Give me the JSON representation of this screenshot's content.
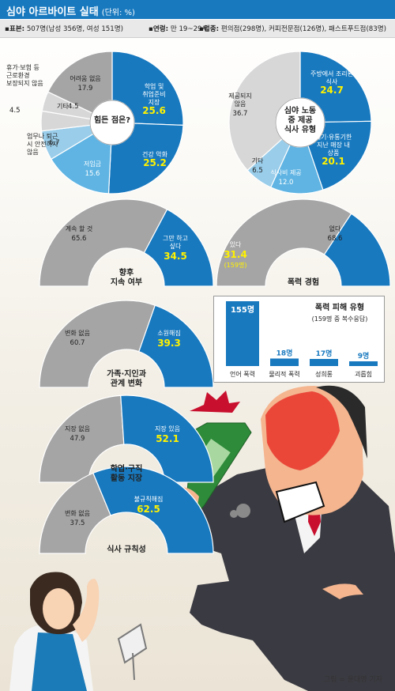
{
  "header": {
    "title": "심야 아르바이트 실태",
    "unit": "(단위: %)"
  },
  "info": {
    "sample_label": "표본:",
    "sample_value": "507명(남성 356명, 여성 151명)",
    "age_label": "연령:",
    "age_value": "만 19~29세",
    "job_label": "업종:",
    "job_value": "편의점(298명), 커피전문점(126명), 패스트푸드점(83명)"
  },
  "colors": {
    "blue": "#1879bf",
    "light_blue": "#5fb4e3",
    "pale_blue": "#99cdea",
    "gray": "#a5a5a5",
    "light_gray": "#d7d7d7",
    "yellow": "#fff200",
    "header_bg": "#1879bf"
  },
  "chart_data": [
    {
      "type": "pie",
      "id": "difficulty",
      "title": "힘든 점은?",
      "slices": [
        {
          "label": "학업 및 취업준비 지장",
          "value": 25.6
        },
        {
          "label": "건강 악화",
          "value": 25.2
        },
        {
          "label": "저임금",
          "value": 15.6
        },
        {
          "label": "업무나 퇴근 시 안전하지 않음",
          "value": 6.7
        },
        {
          "label": "기타",
          "value": 4.5
        },
        {
          "label": "휴가·보험 등 근로환경 보장되지 않음",
          "value": 4.5
        },
        {
          "label": "어려움 없음",
          "value": 17.9
        }
      ]
    },
    {
      "type": "pie",
      "id": "meal",
      "title": "심야 노동 중 제공 식사 유형",
      "slices": [
        {
          "label": "주방에서 조리된 식사",
          "value": 24.7
        },
        {
          "label": "폐기·유통기한 지난 매장 내 상품",
          "value": 20.1
        },
        {
          "label": "식사비 제공",
          "value": 12.0
        },
        {
          "label": "기타",
          "value": 6.5
        },
        {
          "label": "제공되지 않음",
          "value": 36.7
        }
      ]
    },
    {
      "type": "pie",
      "id": "continue",
      "title": "향후 지속 여부",
      "slices": [
        {
          "label": "그만 하고 싶다",
          "value": 34.5
        },
        {
          "label": "계속 할 것",
          "value": 65.6
        }
      ]
    },
    {
      "type": "pie",
      "id": "violence",
      "title": "폭력 경험",
      "slices": [
        {
          "label": "있다",
          "value": 31.4,
          "sub": "(159명)"
        },
        {
          "label": "없다",
          "value": 68.6
        }
      ]
    },
    {
      "type": "pie",
      "id": "relations",
      "title": "가족·지인과 관계 변화",
      "slices": [
        {
          "label": "소원해짐",
          "value": 39.3
        },
        {
          "label": "변화 없음",
          "value": 60.7
        }
      ]
    },
    {
      "type": "pie",
      "id": "study",
      "title": "학업·구직 활동 지장",
      "slices": [
        {
          "label": "지장 있음",
          "value": 52.1
        },
        {
          "label": "지장 없음",
          "value": 47.9
        }
      ]
    },
    {
      "type": "pie",
      "id": "meals_regular",
      "title": "식사 규칙성",
      "slices": [
        {
          "label": "불규칙해짐",
          "value": 62.5
        },
        {
          "label": "변화 없음",
          "value": 37.5
        }
      ]
    },
    {
      "type": "bar",
      "id": "violence_type",
      "title": "폭력 피해 유형",
      "subtitle": "(159명 중 복수응답)",
      "categories": [
        "언어 폭력",
        "물리적 폭력",
        "성희롱",
        "괴롭힘"
      ],
      "values": [
        155,
        18,
        17,
        9
      ],
      "value_labels": [
        "155명",
        "18명",
        "17명",
        "9명"
      ]
    }
  ],
  "credit": "그림 = 윤대영 기자"
}
